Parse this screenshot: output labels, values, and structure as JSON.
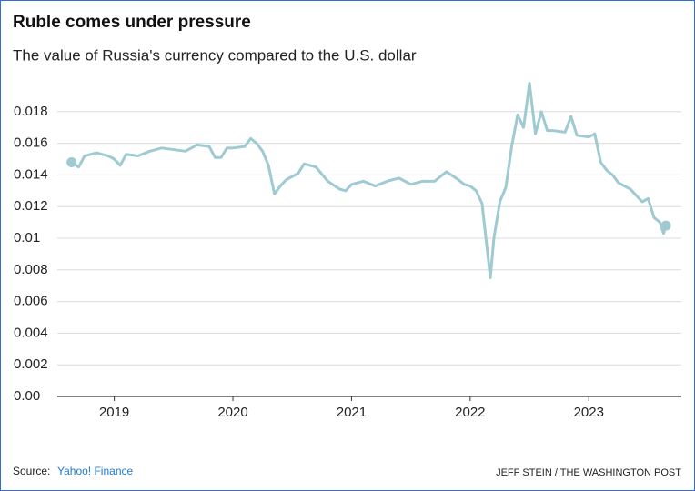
{
  "chart_data": {
    "type": "line",
    "title": "Ruble comes under pressure",
    "subtitle": "The value of Russia's currency compared to the U.S. dollar",
    "source_label": "Source:",
    "source_name": "Yahoo! Finance",
    "credit": "JEFF STEIN / THE WASHINGTON POST",
    "x": [
      2018.64,
      2018.7,
      2018.75,
      2018.85,
      2018.95,
      2019.0,
      2019.05,
      2019.1,
      2019.2,
      2019.3,
      2019.4,
      2019.5,
      2019.6,
      2019.7,
      2019.8,
      2019.85,
      2019.9,
      2019.95,
      2020.0,
      2020.1,
      2020.15,
      2020.2,
      2020.25,
      2020.3,
      2020.35,
      2020.4,
      2020.45,
      2020.55,
      2020.6,
      2020.7,
      2020.8,
      2020.9,
      2020.95,
      2021.0,
      2021.1,
      2021.2,
      2021.3,
      2021.4,
      2021.5,
      2021.6,
      2021.7,
      2021.8,
      2021.9,
      2021.95,
      2022.0,
      2022.05,
      2022.1,
      2022.17,
      2022.2,
      2022.25,
      2022.3,
      2022.35,
      2022.4,
      2022.45,
      2022.5,
      2022.55,
      2022.6,
      2022.65,
      2022.7,
      2022.8,
      2022.85,
      2022.9,
      2023.0,
      2023.05,
      2023.1,
      2023.15,
      2023.2,
      2023.25,
      2023.35,
      2023.45,
      2023.5,
      2023.55,
      2023.6,
      2023.63,
      2023.65
    ],
    "series": [
      {
        "color": "#9fcad2",
        "values": [
          0.0148,
          0.0145,
          0.0152,
          0.0154,
          0.0152,
          0.015,
          0.0146,
          0.0153,
          0.0152,
          0.0155,
          0.0157,
          0.0156,
          0.0155,
          0.0159,
          0.0158,
          0.0151,
          0.0151,
          0.0157,
          0.0157,
          0.0158,
          0.0163,
          0.016,
          0.0155,
          0.0146,
          0.0128,
          0.0133,
          0.0137,
          0.0141,
          0.0147,
          0.0145,
          0.0136,
          0.0131,
          0.013,
          0.0134,
          0.0136,
          0.0133,
          0.0136,
          0.0138,
          0.0134,
          0.0136,
          0.0136,
          0.0142,
          0.0137,
          0.0134,
          0.0133,
          0.013,
          0.0122,
          0.0075,
          0.01,
          0.0123,
          0.0132,
          0.0158,
          0.0178,
          0.017,
          0.0198,
          0.0166,
          0.018,
          0.0168,
          0.0168,
          0.0167,
          0.0177,
          0.0165,
          0.0164,
          0.0166,
          0.0148,
          0.0143,
          0.014,
          0.0135,
          0.0131,
          0.0123,
          0.0125,
          0.0113,
          0.011,
          0.0103,
          0.0108
        ]
      }
    ],
    "end_markers": true,
    "xlim": [
      2018.52,
      2023.78
    ],
    "xticks": [
      2019,
      2020,
      2021,
      2022,
      2023
    ],
    "ylim": [
      0,
      0.02
    ],
    "yticks": [
      {
        "value": 0,
        "label": "0.00"
      },
      0.002,
      0.004,
      0.006,
      0.008,
      0.01,
      0.012,
      0.014,
      0.016,
      0.018
    ],
    "grid": true
  }
}
